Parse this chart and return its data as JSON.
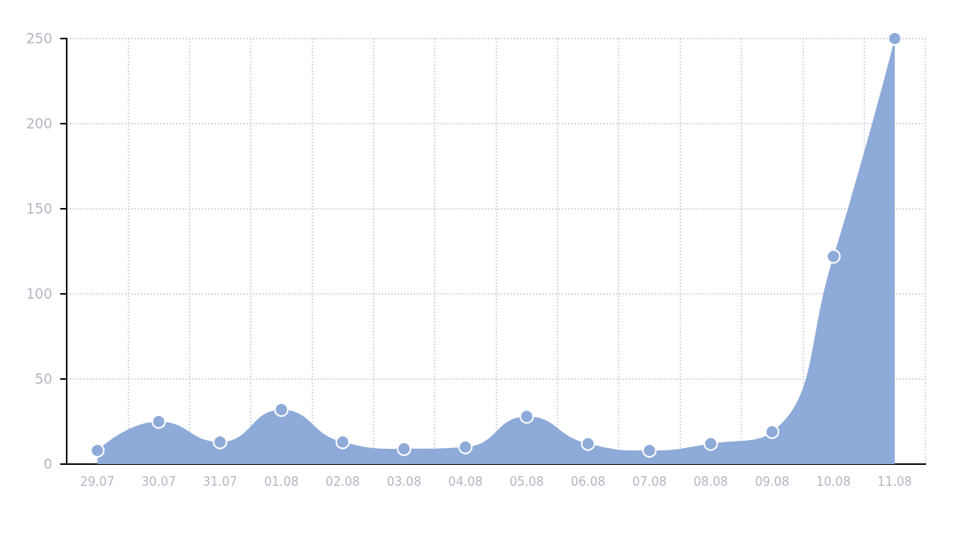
{
  "chart_data": {
    "type": "area",
    "categories": [
      "29.07",
      "30.07",
      "31.07",
      "01.08",
      "02.08",
      "03.08",
      "04.08",
      "05.08",
      "06.08",
      "07.08",
      "08.08",
      "09.08",
      "10.08",
      "11.08"
    ],
    "series": [
      {
        "color": "#8eaad8",
        "values": [
          8,
          25,
          13,
          32,
          13,
          9,
          10,
          28,
          12,
          8,
          12,
          19,
          122,
          250
        ]
      }
    ],
    "ylim": [
      0,
      250
    ],
    "yticks": [
      0,
      50,
      100,
      150,
      200,
      250
    ],
    "grid": true,
    "marker": "circle"
  }
}
